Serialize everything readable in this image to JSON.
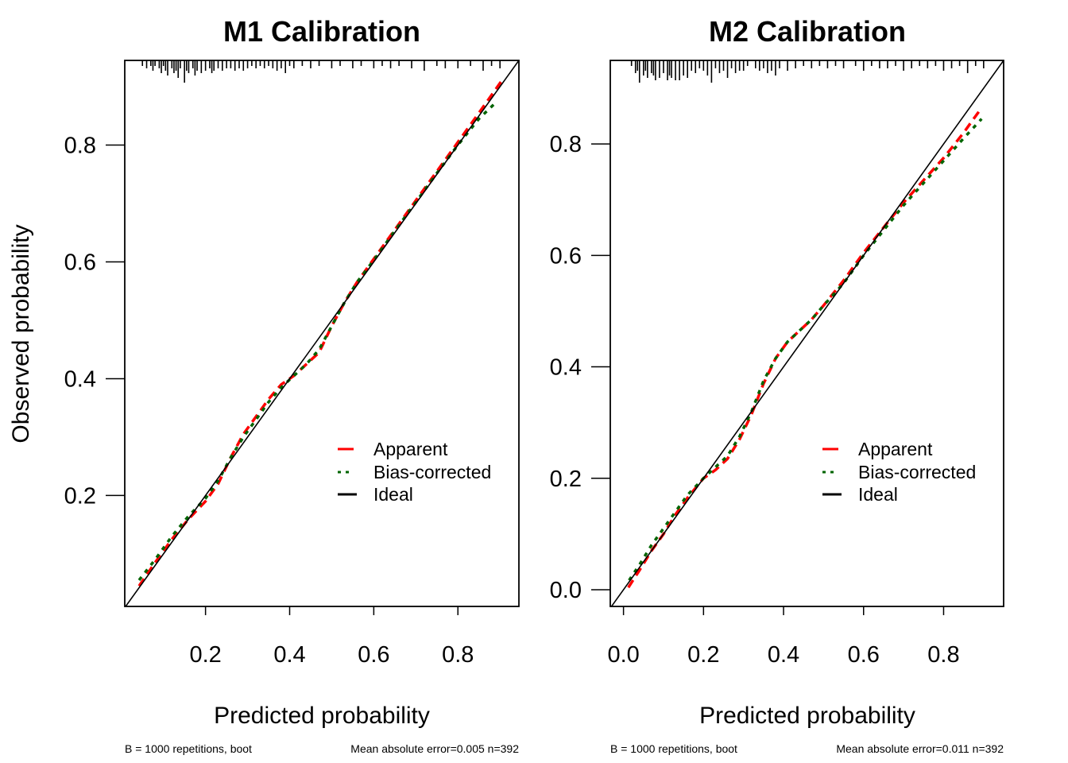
{
  "chart_data": [
    {
      "type": "line",
      "title": "M1 Calibration",
      "xlabel": "Predicted probability",
      "ylabel": "Observed probability",
      "xlim": [
        0.008,
        0.945
      ],
      "ylim": [
        0.01,
        0.945
      ],
      "xticks": [
        0.2,
        0.4,
        0.6,
        0.8
      ],
      "xtick_labels": [
        "0.2",
        "0.4",
        "0.6",
        "0.8"
      ],
      "yticks": [
        0.2,
        0.4,
        0.6,
        0.8
      ],
      "ytick_labels": [
        "0.2",
        "0.4",
        "0.6",
        "0.8"
      ],
      "grid": false,
      "legend": {
        "position": "bottom-right",
        "entries": [
          "Apparent",
          "Bias-corrected",
          "Ideal"
        ]
      },
      "colors": {
        "apparent": "#ff0000",
        "bias_corrected": "#006400",
        "ideal": "#000000"
      },
      "series": [
        {
          "name": "Apparent",
          "style": "dashed",
          "x": [
            0.042,
            0.08,
            0.12,
            0.16,
            0.2,
            0.23,
            0.26,
            0.29,
            0.32,
            0.35,
            0.38,
            0.41,
            0.44,
            0.47,
            0.5,
            0.53,
            0.56,
            0.6,
            0.65,
            0.7,
            0.75,
            0.8,
            0.85,
            0.904
          ],
          "y": [
            0.045,
            0.085,
            0.125,
            0.16,
            0.19,
            0.22,
            0.265,
            0.305,
            0.335,
            0.365,
            0.39,
            0.405,
            0.425,
            0.445,
            0.49,
            0.53,
            0.565,
            0.605,
            0.655,
            0.705,
            0.755,
            0.805,
            0.855,
            0.91
          ]
        },
        {
          "name": "Bias-corrected",
          "style": "dotted",
          "x": [
            0.042,
            0.08,
            0.12,
            0.16,
            0.2,
            0.23,
            0.26,
            0.29,
            0.32,
            0.35,
            0.38,
            0.41,
            0.44,
            0.47,
            0.5,
            0.53,
            0.56,
            0.6,
            0.65,
            0.7,
            0.75,
            0.8,
            0.85,
            0.893
          ],
          "y": [
            0.055,
            0.09,
            0.13,
            0.165,
            0.195,
            0.225,
            0.265,
            0.3,
            0.33,
            0.36,
            0.385,
            0.405,
            0.425,
            0.45,
            0.49,
            0.53,
            0.565,
            0.603,
            0.653,
            0.702,
            0.752,
            0.8,
            0.845,
            0.875
          ]
        },
        {
          "name": "Ideal",
          "style": "solid",
          "x": [
            0.008,
            0.945
          ],
          "y": [
            0.008,
            0.945
          ]
        }
      ],
      "rug_x": [
        0.05,
        0.06,
        0.07,
        0.075,
        0.08,
        0.09,
        0.095,
        0.1,
        0.105,
        0.11,
        0.12,
        0.125,
        0.13,
        0.135,
        0.14,
        0.15,
        0.155,
        0.16,
        0.17,
        0.175,
        0.18,
        0.19,
        0.2,
        0.21,
        0.215,
        0.22,
        0.23,
        0.24,
        0.25,
        0.26,
        0.27,
        0.28,
        0.29,
        0.3,
        0.31,
        0.32,
        0.33,
        0.34,
        0.35,
        0.36,
        0.37,
        0.38,
        0.39,
        0.4,
        0.41,
        0.43,
        0.45,
        0.47,
        0.5,
        0.52,
        0.55,
        0.57,
        0.6,
        0.62,
        0.64,
        0.66,
        0.69,
        0.72,
        0.75,
        0.77,
        0.8,
        0.83,
        0.86,
        0.88,
        0.9
      ],
      "rug_h": [
        1,
        2,
        1,
        3,
        1,
        2,
        4,
        1,
        3,
        5,
        2,
        4,
        3,
        6,
        2,
        8,
        3,
        4,
        2,
        5,
        3,
        4,
        3,
        2,
        4,
        3,
        2,
        3,
        2,
        2,
        3,
        2,
        3,
        2,
        1,
        2,
        1,
        2,
        1,
        2,
        3,
        2,
        4,
        1,
        2,
        1,
        2,
        1,
        2,
        1,
        2,
        1,
        2,
        1,
        2,
        1,
        2,
        3,
        1,
        2,
        2,
        1,
        3,
        1,
        2
      ],
      "footnote_left": "B = 1000 repetitions, boot",
      "footnote_right": "Mean absolute error=0.005 n=392"
    },
    {
      "type": "line",
      "title": "M2 Calibration",
      "xlabel": "Predicted probability",
      "ylabel": "",
      "xlim": [
        -0.033,
        0.95
      ],
      "ylim": [
        -0.03,
        0.95
      ],
      "xticks": [
        0.0,
        0.2,
        0.4,
        0.6,
        0.8
      ],
      "xtick_labels": [
        "0.0",
        "0.2",
        "0.4",
        "0.6",
        "0.8"
      ],
      "yticks": [
        0.0,
        0.2,
        0.4,
        0.6,
        0.8
      ],
      "ytick_labels": [
        "0.0",
        "0.2",
        "0.4",
        "0.6",
        "0.8"
      ],
      "grid": false,
      "legend": {
        "position": "bottom-right",
        "entries": [
          "Apparent",
          "Bias-corrected",
          "Ideal"
        ]
      },
      "colors": {
        "apparent": "#ff0000",
        "bias_corrected": "#006400",
        "ideal": "#000000"
      },
      "series": [
        {
          "name": "Apparent",
          "style": "dashed",
          "x": [
            0.012,
            0.04,
            0.07,
            0.1,
            0.13,
            0.16,
            0.2,
            0.23,
            0.26,
            0.29,
            0.32,
            0.35,
            0.38,
            0.41,
            0.44,
            0.47,
            0.5,
            0.55,
            0.6,
            0.65,
            0.7,
            0.75,
            0.8,
            0.85,
            0.895
          ],
          "y": [
            0.004,
            0.035,
            0.07,
            0.1,
            0.135,
            0.165,
            0.2,
            0.215,
            0.235,
            0.27,
            0.315,
            0.37,
            0.415,
            0.445,
            0.465,
            0.485,
            0.51,
            0.555,
            0.605,
            0.65,
            0.695,
            0.735,
            0.775,
            0.82,
            0.865
          ]
        },
        {
          "name": "Bias-corrected",
          "style": "dotted",
          "x": [
            0.014,
            0.04,
            0.07,
            0.1,
            0.13,
            0.16,
            0.2,
            0.23,
            0.26,
            0.29,
            0.32,
            0.35,
            0.38,
            0.41,
            0.44,
            0.47,
            0.5,
            0.55,
            0.6,
            0.65,
            0.7,
            0.75,
            0.8,
            0.85,
            0.895
          ],
          "y": [
            0.017,
            0.045,
            0.08,
            0.11,
            0.14,
            0.17,
            0.2,
            0.22,
            0.24,
            0.275,
            0.32,
            0.375,
            0.415,
            0.445,
            0.465,
            0.485,
            0.51,
            0.55,
            0.6,
            0.645,
            0.69,
            0.73,
            0.77,
            0.81,
            0.845
          ]
        },
        {
          "name": "Ideal",
          "style": "solid",
          "x": [
            -0.033,
            0.95
          ],
          "y": [
            -0.033,
            0.95
          ]
        }
      ],
      "rug_x": [
        0.02,
        0.03,
        0.035,
        0.04,
        0.05,
        0.055,
        0.06,
        0.07,
        0.075,
        0.08,
        0.09,
        0.1,
        0.11,
        0.115,
        0.12,
        0.13,
        0.14,
        0.15,
        0.16,
        0.17,
        0.18,
        0.19,
        0.2,
        0.21,
        0.22,
        0.23,
        0.24,
        0.25,
        0.26,
        0.27,
        0.28,
        0.29,
        0.3,
        0.31,
        0.33,
        0.34,
        0.35,
        0.36,
        0.37,
        0.38,
        0.39,
        0.41,
        0.43,
        0.45,
        0.47,
        0.49,
        0.51,
        0.53,
        0.55,
        0.58,
        0.6,
        0.62,
        0.64,
        0.66,
        0.68,
        0.7,
        0.72,
        0.74,
        0.76,
        0.78,
        0.8,
        0.82,
        0.84,
        0.86,
        0.88,
        0.9
      ],
      "rug_h": [
        1,
        4,
        3,
        8,
        5,
        3,
        6,
        4,
        5,
        7,
        6,
        4,
        7,
        5,
        6,
        7,
        7,
        5,
        6,
        3,
        4,
        2,
        3,
        5,
        8,
        2,
        4,
        3,
        6,
        2,
        4,
        3,
        3,
        1,
        2,
        3,
        2,
        4,
        3,
        5,
        2,
        3,
        2,
        1,
        2,
        1,
        2,
        1,
        2,
        1,
        3,
        1,
        2,
        2,
        1,
        3,
        2,
        1,
        2,
        1,
        3,
        2,
        1,
        4,
        1,
        2
      ],
      "footnote_left": "B = 1000 repetitions, boot",
      "footnote_right": "Mean absolute error=0.011 n=392"
    }
  ]
}
